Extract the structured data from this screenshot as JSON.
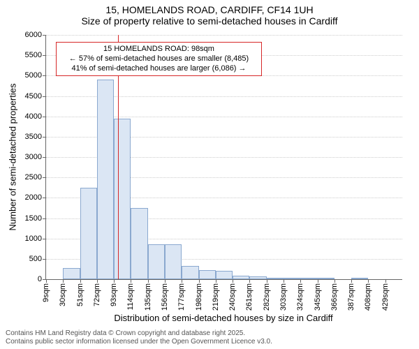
{
  "title": {
    "line1": "15, HOMELANDS ROAD, CARDIFF, CF14 1UH",
    "line2": "Size of property relative to semi-detached houses in Cardiff"
  },
  "chart": {
    "type": "histogram",
    "background_color": "#ffffff",
    "grid_color": "#cccccc",
    "axis_color": "#666666",
    "bar_fill": "#dbe6f4",
    "bar_border": "#8aa8cf",
    "refline_color": "#d62728",
    "annot_border": "#d62728",
    "title_fontsize": 14,
    "label_fontsize": 13,
    "tick_fontsize": 11,
    "annot_fontsize": 11,
    "footer_fontsize": 10,
    "ylim": [
      0,
      6000
    ],
    "ytick_step": 500,
    "ylabel": "Number of semi-detached properties",
    "xlabel": "Distribution of semi-detached houses by size in Cardiff",
    "bins": [
      {
        "label": "9sqm",
        "value": 0
      },
      {
        "label": "30sqm",
        "value": 280
      },
      {
        "label": "51sqm",
        "value": 2250
      },
      {
        "label": "72sqm",
        "value": 4900
      },
      {
        "label": "93sqm",
        "value": 3950
      },
      {
        "label": "114sqm",
        "value": 1750
      },
      {
        "label": "135sqm",
        "value": 850
      },
      {
        "label": "156sqm",
        "value": 850
      },
      {
        "label": "177sqm",
        "value": 330
      },
      {
        "label": "198sqm",
        "value": 230
      },
      {
        "label": "219sqm",
        "value": 200
      },
      {
        "label": "240sqm",
        "value": 90
      },
      {
        "label": "261sqm",
        "value": 70
      },
      {
        "label": "282sqm",
        "value": 30
      },
      {
        "label": "303sqm",
        "value": 30
      },
      {
        "label": "324sqm",
        "value": 10
      },
      {
        "label": "345sqm",
        "value": 20
      },
      {
        "label": "366sqm",
        "value": 5
      },
      {
        "label": "387sqm",
        "value": 10
      },
      {
        "label": "408sqm",
        "value": 5
      },
      {
        "label": "429sqm",
        "value": 5
      }
    ],
    "bin_start": 9,
    "bin_width": 21,
    "reference": {
      "value_sqm": 98,
      "annot": {
        "line1": "15 HOMELANDS ROAD: 98sqm",
        "line2": "← 57% of semi-detached houses are smaller (8,485)",
        "line3": "41% of semi-detached houses are larger (6,086) →"
      }
    }
  },
  "footer": {
    "line1": "Contains HM Land Registry data © Crown copyright and database right 2025.",
    "line2": "Contains public sector information licensed under the Open Government Licence v3.0."
  }
}
